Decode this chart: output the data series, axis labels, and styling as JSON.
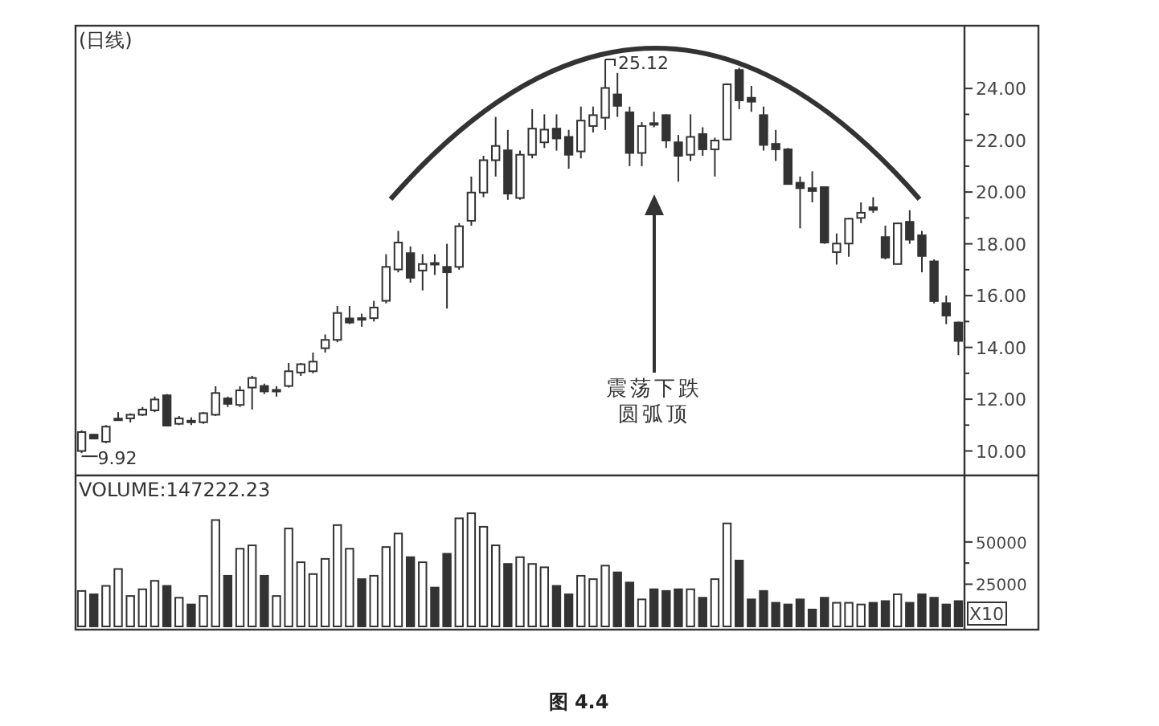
{
  "chart_data": [
    {
      "type": "candlestick",
      "title": "(日线)",
      "color": "#333333",
      "tick_labels": "y",
      "categories": [
        null,
        null,
        null,
        null,
        null,
        null,
        null,
        null,
        null,
        null,
        null,
        null,
        null,
        null,
        null,
        null,
        null,
        null,
        null,
        null,
        null,
        null,
        null,
        null,
        null,
        null,
        null,
        null,
        null,
        null,
        null,
        null,
        null,
        null,
        null,
        null,
        null,
        null,
        null,
        null,
        null,
        null,
        null,
        null,
        null,
        null,
        null,
        null,
        null,
        null,
        null,
        null,
        null,
        null,
        null,
        null,
        null,
        null,
        null,
        null,
        null,
        null,
        null,
        null,
        null,
        null,
        null,
        null,
        null,
        null,
        null,
        null,
        null
      ],
      "ohlc": [
        [
          10.0,
          10.8,
          9.92,
          10.73
        ],
        [
          10.63,
          10.65,
          10.45,
          10.48
        ],
        [
          10.36,
          11.0,
          10.3,
          10.94
        ],
        [
          11.2,
          11.5,
          11.2,
          11.25
        ],
        [
          11.26,
          11.45,
          11.1,
          11.4
        ],
        [
          11.4,
          11.7,
          11.35,
          11.6
        ],
        [
          11.57,
          12.1,
          11.5,
          11.99
        ],
        [
          12.15,
          12.2,
          10.95,
          10.98
        ],
        [
          11.05,
          11.35,
          11.0,
          11.26
        ],
        [
          11.12,
          11.3,
          11.0,
          11.17
        ],
        [
          11.11,
          11.5,
          11.05,
          11.46
        ],
        [
          11.4,
          12.5,
          11.35,
          12.24
        ],
        [
          12.03,
          12.1,
          11.7,
          11.82
        ],
        [
          11.78,
          12.5,
          11.7,
          12.34
        ],
        [
          12.45,
          12.9,
          11.6,
          12.82
        ],
        [
          12.51,
          12.6,
          12.2,
          12.3
        ],
        [
          12.32,
          12.5,
          12.1,
          12.36
        ],
        [
          12.51,
          13.4,
          12.45,
          13.08
        ],
        [
          13.03,
          13.4,
          12.9,
          13.35
        ],
        [
          13.08,
          13.8,
          13.0,
          13.45
        ],
        [
          13.97,
          14.5,
          13.8,
          14.29
        ],
        [
          14.29,
          15.6,
          14.2,
          15.33
        ],
        [
          15.12,
          15.6,
          14.9,
          14.96
        ],
        [
          15.1,
          15.3,
          14.8,
          15.13
        ],
        [
          15.13,
          15.8,
          15.0,
          15.54
        ],
        [
          15.8,
          17.6,
          15.7,
          17.11
        ],
        [
          17.01,
          18.5,
          16.9,
          18.05
        ],
        [
          17.64,
          17.9,
          16.5,
          16.69
        ],
        [
          16.97,
          17.6,
          16.2,
          17.22
        ],
        [
          17.2,
          17.6,
          16.8,
          17.26
        ],
        [
          17.11,
          18.0,
          15.5,
          16.9
        ],
        [
          17.11,
          18.8,
          17.0,
          18.68
        ],
        [
          18.89,
          20.6,
          18.7,
          19.98
        ],
        [
          19.98,
          21.4,
          19.8,
          21.23
        ],
        [
          21.23,
          22.9,
          20.6,
          21.78
        ],
        [
          21.61,
          22.4,
          19.7,
          19.94
        ],
        [
          19.77,
          21.6,
          19.7,
          21.44
        ],
        [
          21.44,
          23.2,
          21.3,
          22.45
        ],
        [
          21.92,
          23.0,
          21.7,
          22.41
        ],
        [
          22.45,
          23.0,
          21.6,
          22.07
        ],
        [
          22.13,
          22.4,
          20.9,
          21.44
        ],
        [
          21.57,
          23.3,
          21.3,
          22.76
        ],
        [
          22.55,
          23.3,
          22.3,
          22.97
        ],
        [
          22.87,
          25.12,
          22.4,
          24.02
        ],
        [
          23.77,
          24.6,
          22.9,
          23.33
        ],
        [
          23.08,
          23.3,
          21.0,
          21.51
        ],
        [
          21.51,
          22.7,
          21.0,
          22.55
        ],
        [
          22.62,
          23.1,
          22.5,
          22.66
        ],
        [
          22.97,
          23.0,
          21.7,
          21.99
        ],
        [
          21.92,
          22.2,
          20.4,
          21.4
        ],
        [
          21.44,
          23.0,
          21.2,
          22.13
        ],
        [
          22.24,
          22.5,
          21.4,
          21.65
        ],
        [
          21.65,
          22.1,
          20.6,
          21.99
        ],
        [
          22.03,
          24.2,
          22.0,
          24.16
        ],
        [
          24.71,
          24.8,
          23.2,
          23.54
        ],
        [
          23.64,
          24.1,
          23.1,
          23.49
        ],
        [
          22.97,
          23.3,
          21.6,
          21.82
        ],
        [
          21.86,
          22.4,
          21.2,
          21.65
        ],
        [
          21.65,
          21.7,
          20.3,
          20.31
        ],
        [
          20.36,
          20.6,
          18.6,
          20.15
        ],
        [
          20.15,
          20.8,
          19.6,
          20.04
        ],
        [
          20.19,
          20.2,
          18.0,
          18.05
        ],
        [
          17.68,
          18.4,
          17.2,
          18.01
        ],
        [
          18.01,
          19.0,
          17.5,
          18.97
        ],
        [
          19.0,
          19.6,
          18.8,
          19.2
        ],
        [
          19.41,
          19.8,
          19.2,
          19.31
        ],
        [
          18.26,
          18.7,
          17.4,
          17.47
        ],
        [
          17.22,
          18.8,
          17.2,
          18.79
        ],
        [
          18.85,
          19.3,
          18.0,
          18.16
        ],
        [
          18.33,
          18.5,
          16.9,
          17.53
        ],
        [
          17.32,
          17.4,
          15.7,
          15.79
        ],
        [
          15.71,
          16.0,
          14.9,
          15.23
        ],
        [
          14.96,
          15.0,
          13.7,
          14.25
        ]
      ],
      "ylim": [
        9.18,
        26.3
      ],
      "yticks": [
        {
          "value": 10,
          "label": "10.00"
        },
        {
          "value": 12,
          "label": "12.00"
        },
        {
          "value": 14,
          "label": "14.00"
        },
        {
          "value": 16,
          "label": "16.00"
        },
        {
          "value": 18,
          "label": "18.00"
        },
        {
          "value": 20,
          "label": "20.00"
        },
        {
          "value": 22,
          "label": "22.00"
        },
        {
          "value": 24,
          "label": "24.00"
        }
      ],
      "annotations": [
        "25.12",
        "9.92",
        "震荡下跌",
        "圆弧顶",
        "图 4.4"
      ]
    },
    {
      "type": "bar",
      "title": "VOLUME:147222.23",
      "tick_labels": "y",
      "categories": [
        null,
        null,
        null,
        null,
        null,
        null,
        null,
        null,
        null,
        null,
        null,
        null,
        null,
        null,
        null,
        null,
        null,
        null,
        null,
        null,
        null,
        null,
        null,
        null,
        null,
        null,
        null,
        null,
        null,
        null,
        null,
        null,
        null,
        null,
        null,
        null,
        null,
        null,
        null,
        null,
        null,
        null,
        null,
        null,
        null,
        null,
        null,
        null,
        null,
        null,
        null,
        null,
        null,
        null,
        null,
        null,
        null,
        null,
        null,
        null,
        null,
        null,
        null,
        null,
        null,
        null,
        null,
        null,
        null,
        null,
        null,
        null,
        null
      ],
      "values": [
        21000,
        19000,
        24000,
        34000,
        18000,
        22000,
        27000,
        24000,
        17000,
        13000,
        18000,
        63000,
        30000,
        46000,
        48000,
        30000,
        18000,
        58000,
        38000,
        31000,
        40000,
        60000,
        46000,
        28000,
        30000,
        47000,
        55000,
        41000,
        38000,
        23000,
        43000,
        64000,
        67000,
        59000,
        48000,
        37000,
        41000,
        37000,
        35000,
        24000,
        19000,
        30000,
        28000,
        36000,
        32000,
        26000,
        16000,
        22000,
        21000,
        22000,
        22000,
        17000,
        28000,
        61000,
        39000,
        16000,
        21000,
        14000,
        13000,
        16000,
        10000,
        17000,
        14000,
        14000,
        13000,
        14000,
        15000,
        19000,
        14000,
        19000,
        17000,
        13000,
        15000
      ],
      "colors": [
        "#ffffff",
        "#333333",
        "#ffffff",
        "#ffffff",
        "#ffffff",
        "#ffffff",
        "#ffffff",
        "#333333",
        "#ffffff",
        "#333333",
        "#ffffff",
        "#ffffff",
        "#333333",
        "#ffffff",
        "#ffffff",
        "#333333",
        "#ffffff",
        "#ffffff",
        "#ffffff",
        "#ffffff",
        "#ffffff",
        "#ffffff",
        "#ffffff",
        "#333333",
        "#ffffff",
        "#ffffff",
        "#ffffff",
        "#333333",
        "#ffffff",
        "#333333",
        "#333333",
        "#ffffff",
        "#ffffff",
        "#ffffff",
        "#ffffff",
        "#333333",
        "#ffffff",
        "#ffffff",
        "#ffffff",
        "#333333",
        "#333333",
        "#ffffff",
        "#ffffff",
        "#ffffff",
        "#333333",
        "#333333",
        "#ffffff",
        "#333333",
        "#333333",
        "#333333",
        "#ffffff",
        "#333333",
        "#ffffff",
        "#ffffff",
        "#333333",
        "#333333",
        "#333333",
        "#333333",
        "#333333",
        "#333333",
        "#333333",
        "#333333",
        "#ffffff",
        "#ffffff",
        "#ffffff",
        "#333333",
        "#333333",
        "#ffffff",
        "#333333",
        "#333333",
        "#333333",
        "#333333",
        "#333333"
      ],
      "ylim": [
        0,
        87500
      ],
      "yticks": [
        25000,
        50000
      ],
      "annotations": [
        "X10"
      ]
    }
  ]
}
